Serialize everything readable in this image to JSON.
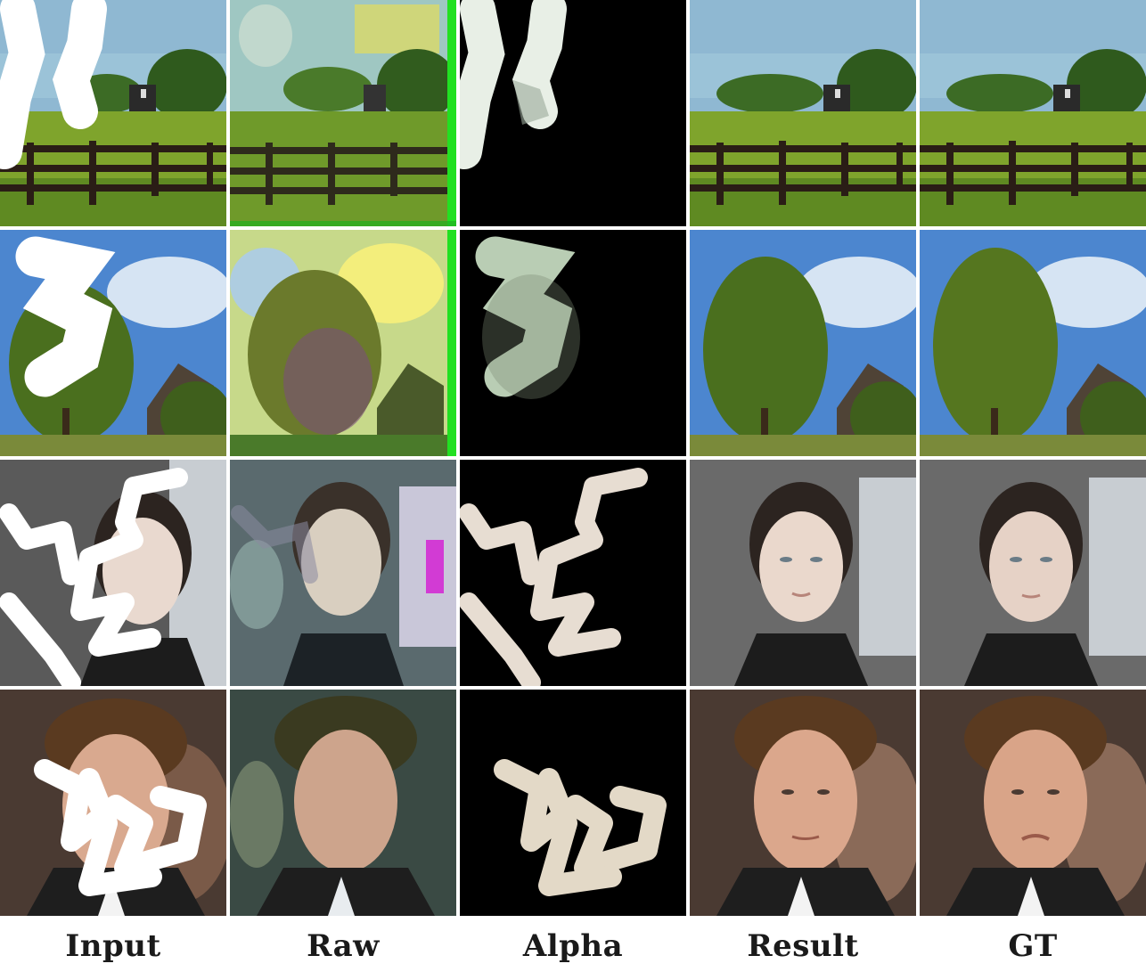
{
  "figure": {
    "columns": [
      "Input",
      "Raw",
      "Alpha",
      "Result",
      "GT"
    ],
    "rows": [
      {
        "scene": "farm-fence-landscape"
      },
      {
        "scene": "tree-and-barn-landscape"
      },
      {
        "scene": "woman-portrait"
      },
      {
        "scene": "man-portrait"
      }
    ]
  },
  "colors": {
    "mask_white": "#ffffff",
    "raw_green_border": "#22e022",
    "alpha_background": "#000000"
  }
}
